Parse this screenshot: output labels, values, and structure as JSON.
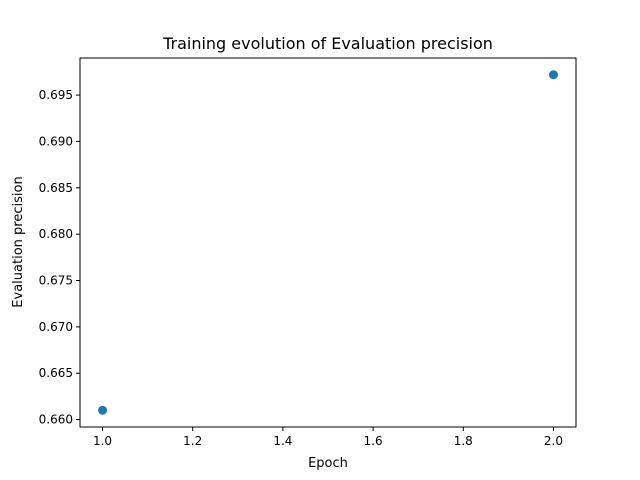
{
  "chart_data": {
    "type": "scatter",
    "title": "Training evolution of Evaluation precision",
    "xlabel": "Epoch",
    "ylabel": "Evaluation precision",
    "x": [
      1.0,
      2.0
    ],
    "y": [
      0.661,
      0.6972
    ],
    "xlim": [
      0.95,
      2.05
    ],
    "ylim": [
      0.6592,
      0.699
    ],
    "xticks": [
      "1.0",
      "1.2",
      "1.4",
      "1.6",
      "1.8",
      "2.0"
    ],
    "xtick_values": [
      1.0,
      1.2,
      1.4,
      1.6,
      1.8,
      2.0
    ],
    "yticks": [
      "0.660",
      "0.665",
      "0.670",
      "0.675",
      "0.680",
      "0.685",
      "0.690",
      "0.695"
    ],
    "ytick_values": [
      0.66,
      0.665,
      0.67,
      0.675,
      0.68,
      0.685,
      0.69,
      0.695
    ],
    "grid": false,
    "legend": "none",
    "point_color": "#1f77b4"
  }
}
